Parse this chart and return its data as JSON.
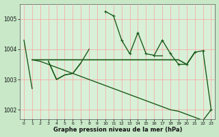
{
  "xlabel": "Graphe pression niveau de la mer (hPa)",
  "background_color": "#c8e8c8",
  "plot_bg_color": "#d8f0d8",
  "grid_color": "#ff9999",
  "line_color": "#1a5c1a",
  "hours": [
    0,
    1,
    2,
    3,
    4,
    5,
    6,
    7,
    8,
    9,
    10,
    11,
    12,
    13,
    14,
    15,
    16,
    17,
    18,
    19,
    20,
    21,
    22,
    23
  ],
  "series_jagged": [
    1004.3,
    1002.7,
    null,
    1003.6,
    1003.0,
    1003.15,
    1003.2,
    1003.55,
    1004.0,
    null,
    1005.25,
    1005.1,
    1004.3,
    1003.85,
    1004.55,
    1003.85,
    1003.8,
    1004.3,
    1003.85,
    1003.5,
    1003.5,
    1003.9,
    1003.95,
    1002.0
  ],
  "series_flat": [
    null,
    1003.65,
    1003.65,
    1003.65,
    1003.65,
    1003.65,
    1003.65,
    1003.65,
    1003.65,
    1003.65,
    1003.65,
    1003.65,
    1003.65,
    1003.65,
    1003.65,
    1003.65,
    1003.65,
    1003.65,
    1003.65,
    1003.65,
    1003.5,
    1003.9,
    null,
    null
  ],
  "series_smooth": [
    1004.3,
    1003.65,
    null,
    null,
    null,
    null,
    null,
    null,
    null,
    null,
    null,
    null,
    null,
    null,
    null,
    null,
    null,
    null,
    null,
    null,
    null,
    1003.9,
    1003.95,
    null
  ],
  "series_decline": [
    null,
    1003.65,
    1003.6,
    1003.5,
    1003.4,
    1003.3,
    1003.2,
    1003.1,
    1003.0,
    1002.9,
    1002.8,
    1002.7,
    1002.6,
    1002.5,
    1002.4,
    1002.3,
    1002.2,
    1002.1,
    1002.0,
    1001.95,
    1001.85,
    1001.75,
    1001.65,
    1002.0
  ],
  "series_mid": [
    null,
    null,
    null,
    1003.6,
    1003.0,
    1003.15,
    1003.2,
    1003.55,
    null,
    null,
    null,
    null,
    null,
    null,
    null,
    null,
    1003.8,
    1003.8,
    null,
    null,
    null,
    null,
    null,
    null
  ],
  "ylim": [
    1001.7,
    1005.5
  ],
  "yticks": [
    1002,
    1003,
    1004,
    1005
  ]
}
